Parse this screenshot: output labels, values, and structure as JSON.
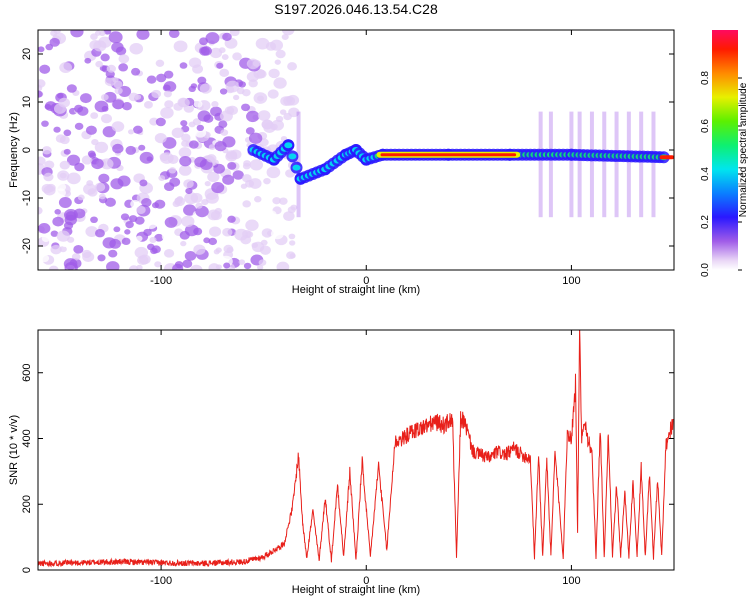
{
  "title": "S197.2026.046.13.54.C28",
  "chart_data": [
    {
      "type": "heatmap",
      "xlabel": "Height of straight line (km)",
      "ylabel": "Frequency (Hz)",
      "xlim": [
        -160,
        150
      ],
      "ylim": [
        -25,
        25
      ],
      "x_ticks": [
        -100,
        0,
        100
      ],
      "y_ticks": [
        -20,
        -10,
        0,
        10,
        20
      ],
      "grid": false,
      "description_ridge": [
        {
          "x": -55,
          "y": 0
        },
        {
          "x": -45,
          "y": -2
        },
        {
          "x": -38,
          "y": 1
        },
        {
          "x": -32,
          "y": -6
        },
        {
          "x": -20,
          "y": -4
        },
        {
          "x": -10,
          "y": -1
        },
        {
          "x": -5,
          "y": 0
        },
        {
          "x": 0,
          "y": -2
        },
        {
          "x": 8,
          "y": -1
        },
        {
          "x": 40,
          "y": -1
        },
        {
          "x": 70,
          "y": -1
        },
        {
          "x": 100,
          "y": -1
        },
        {
          "x": 145,
          "y": -1.5
        }
      ],
      "colorbar": {
        "label": "Normalized spectral amplitude",
        "ticks": [
          0.0,
          0.2,
          0.4,
          0.6,
          0.8
        ],
        "range": [
          0,
          1
        ]
      }
    },
    {
      "type": "line",
      "xlabel": "Height of straight line (km)",
      "ylabel": "SNR (10 * v/v)",
      "xlim": [
        -160,
        150
      ],
      "ylim": [
        0,
        730
      ],
      "x_ticks": [
        -100,
        0,
        100
      ],
      "y_ticks": [
        0,
        200,
        400,
        600
      ],
      "grid": false,
      "series": [
        {
          "color": "#e8201a",
          "x": [
            -160,
            -140,
            -120,
            -100,
            -80,
            -60,
            -50,
            -40,
            -36,
            -33,
            -31,
            -29,
            -26,
            -23,
            -20,
            -17,
            -14,
            -11,
            -8,
            -5,
            -2,
            2,
            6,
            10,
            14,
            18,
            22,
            26,
            30,
            34,
            38,
            42,
            44,
            46,
            48,
            52,
            56,
            60,
            64,
            68,
            72,
            76,
            80,
            82,
            84,
            86,
            88,
            90,
            92,
            96,
            98,
            100,
            102,
            103,
            104,
            105,
            106,
            108,
            110,
            112,
            114,
            116,
            118,
            120,
            122,
            124,
            126,
            128,
            130,
            132,
            134,
            136,
            138,
            140,
            142,
            144,
            146,
            148,
            150
          ],
          "y": [
            20,
            22,
            25,
            22,
            20,
            25,
            40,
            80,
            190,
            350,
            140,
            40,
            180,
            30,
            220,
            30,
            260,
            40,
            300,
            30,
            330,
            40,
            320,
            60,
            390,
            400,
            420,
            430,
            440,
            450,
            440,
            460,
            40,
            460,
            450,
            360,
            350,
            340,
            360,
            350,
            370,
            350,
            340,
            40,
            350,
            40,
            340,
            40,
            360,
            40,
            420,
            400,
            570,
            120,
            720,
            380,
            470,
            400,
            350,
            40,
            430,
            40,
            420,
            40,
            260,
            40,
            240,
            40,
            270,
            40,
            310,
            40,
            290,
            40,
            280,
            40,
            380,
            420,
            460
          ]
        }
      ]
    }
  ]
}
